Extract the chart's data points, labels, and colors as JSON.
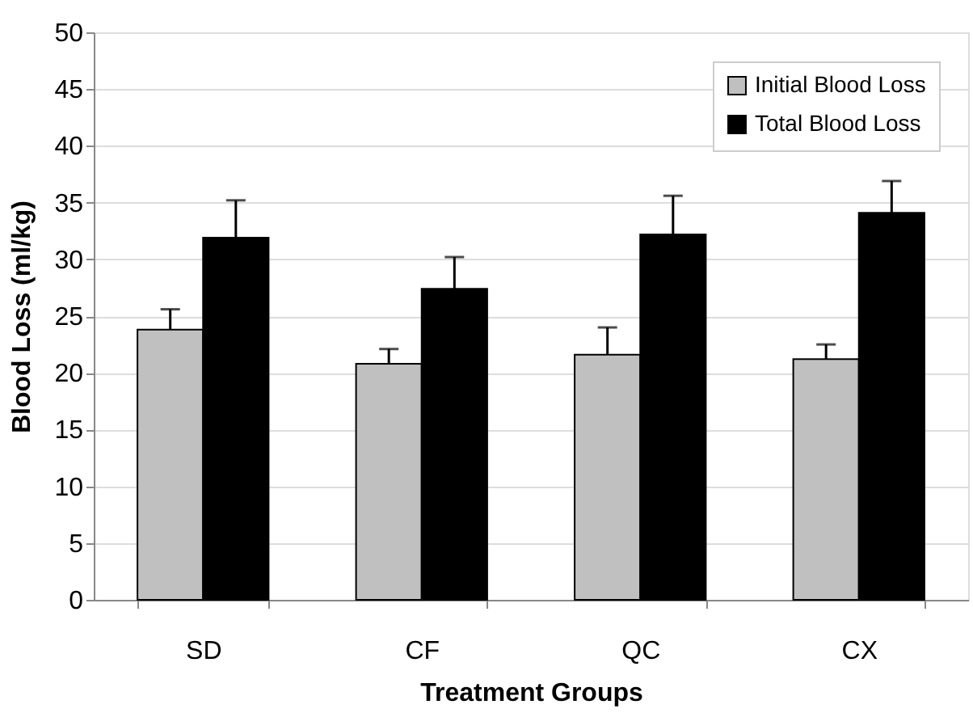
{
  "chart_data": {
    "type": "bar",
    "xlabel": "Treatment Groups",
    "ylabel": "Blood Loss (ml/kg)",
    "categories": [
      "SD",
      "CF",
      "QC",
      "CX"
    ],
    "series": [
      {
        "name": "Initial Blood Loss",
        "color": "#c0c0c0",
        "values": [
          23.8,
          20.8,
          21.6,
          21.2
        ],
        "errors": [
          [
            23.8,
            25.6
          ],
          [
            20.8,
            22.1
          ],
          [
            21.6,
            24.0
          ],
          [
            21.2,
            22.5
          ]
        ]
      },
      {
        "name": "Total Blood Loss",
        "color": "#000000",
        "values": [
          31.9,
          27.4,
          32.2,
          34.1
        ],
        "errors": [
          [
            31.9,
            35.2
          ],
          [
            27.4,
            30.2
          ],
          [
            32.2,
            35.6
          ],
          [
            34.1,
            36.9
          ]
        ]
      }
    ],
    "ylim": [
      0,
      50
    ],
    "yticks": [
      0,
      5,
      10,
      15,
      20,
      25,
      30,
      35,
      40,
      45,
      50
    ],
    "grid": "y",
    "legend": "top right"
  }
}
